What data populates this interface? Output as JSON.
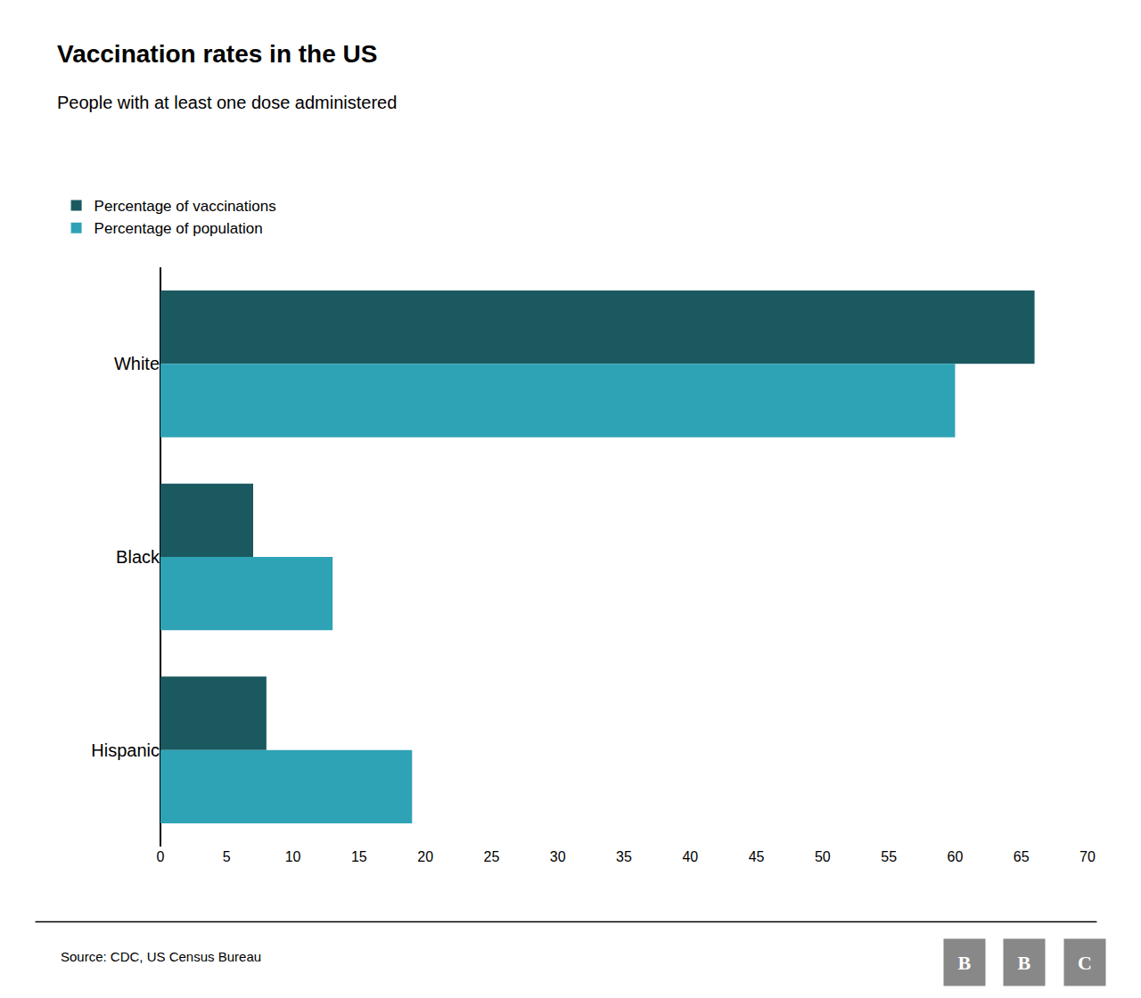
{
  "chart_data": {
    "type": "bar",
    "title": "Vaccination rates in the US",
    "subtitle": "People with at least one dose administered",
    "orientation": "horizontal",
    "categories": [
      "White",
      "Black",
      "Hispanic"
    ],
    "series": [
      {
        "name": "Percentage of vaccinations",
        "color": "#1a5960",
        "values": [
          66,
          7,
          8
        ]
      },
      {
        "name": "Percentage of population",
        "color": "#2ea3b5",
        "values": [
          60,
          13,
          19
        ]
      }
    ],
    "xlim": [
      0,
      70
    ],
    "xticks": [
      0,
      5,
      10,
      15,
      20,
      25,
      30,
      35,
      40,
      45,
      50,
      55,
      60,
      65,
      70
    ],
    "grid": false,
    "legend": "top left",
    "annotations": [
      "Source: CDC, US Census Bureau",
      "BBC"
    ]
  }
}
